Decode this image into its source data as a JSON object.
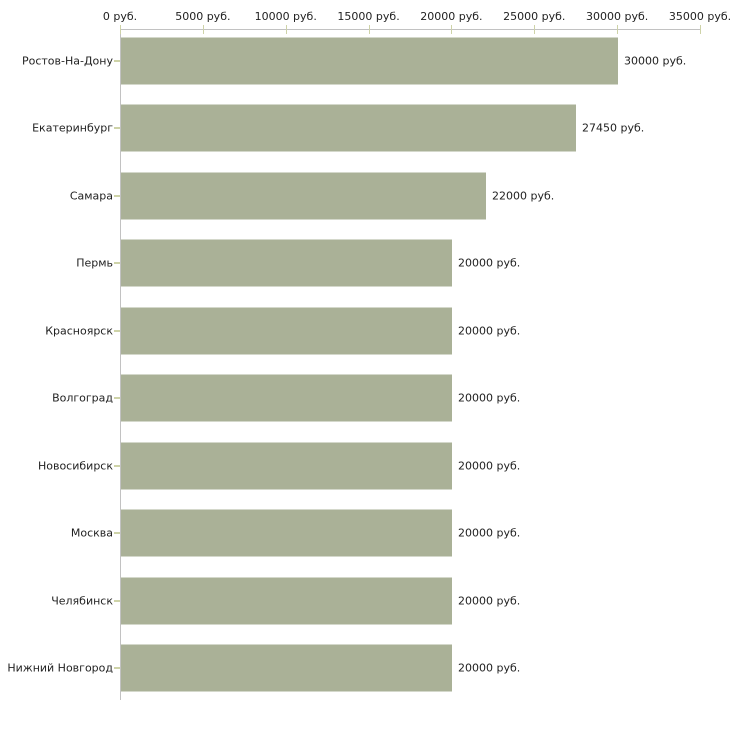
{
  "chart_data": {
    "type": "bar",
    "orientation": "horizontal",
    "title": "",
    "xlabel": "",
    "ylabel": "",
    "unit": "руб.",
    "categories": [
      "Ростов-На-Дону",
      "Екатеринбург",
      "Самара",
      "Пермь",
      "Красноярск",
      "Волгоград",
      "Новосибирск",
      "Москва",
      "Челябинск",
      "Нижний Новгород"
    ],
    "values": [
      30000,
      27450,
      22000,
      20000,
      20000,
      20000,
      20000,
      20000,
      20000,
      20000
    ],
    "value_labels": [
      "30000 руб.",
      "27450 руб.",
      "22000 руб.",
      "20000 руб.",
      "20000 руб.",
      "20000 руб.",
      "20000 руб.",
      "20000 руб.",
      "20000 руб.",
      "20000 руб."
    ],
    "x_ticks": [
      {
        "value": 0,
        "label": "0 руб."
      },
      {
        "value": 5000,
        "label": "5000 руб."
      },
      {
        "value": 10000,
        "label": "10000 руб."
      },
      {
        "value": 15000,
        "label": "15000 руб."
      },
      {
        "value": 20000,
        "label": "20000 руб."
      },
      {
        "value": 25000,
        "label": "25000 руб."
      },
      {
        "value": 30000,
        "label": "30000 руб."
      },
      {
        "value": 35000,
        "label": "35000 руб."
      }
    ],
    "xlim": [
      0,
      35000
    ],
    "grid": false,
    "legend_position": "none",
    "colors": {
      "bar": "#aab197",
      "axis_line": "#c2c2c2",
      "tick_mark": "#ced3a8",
      "text": "#222222",
      "background": "#ffffff"
    }
  }
}
